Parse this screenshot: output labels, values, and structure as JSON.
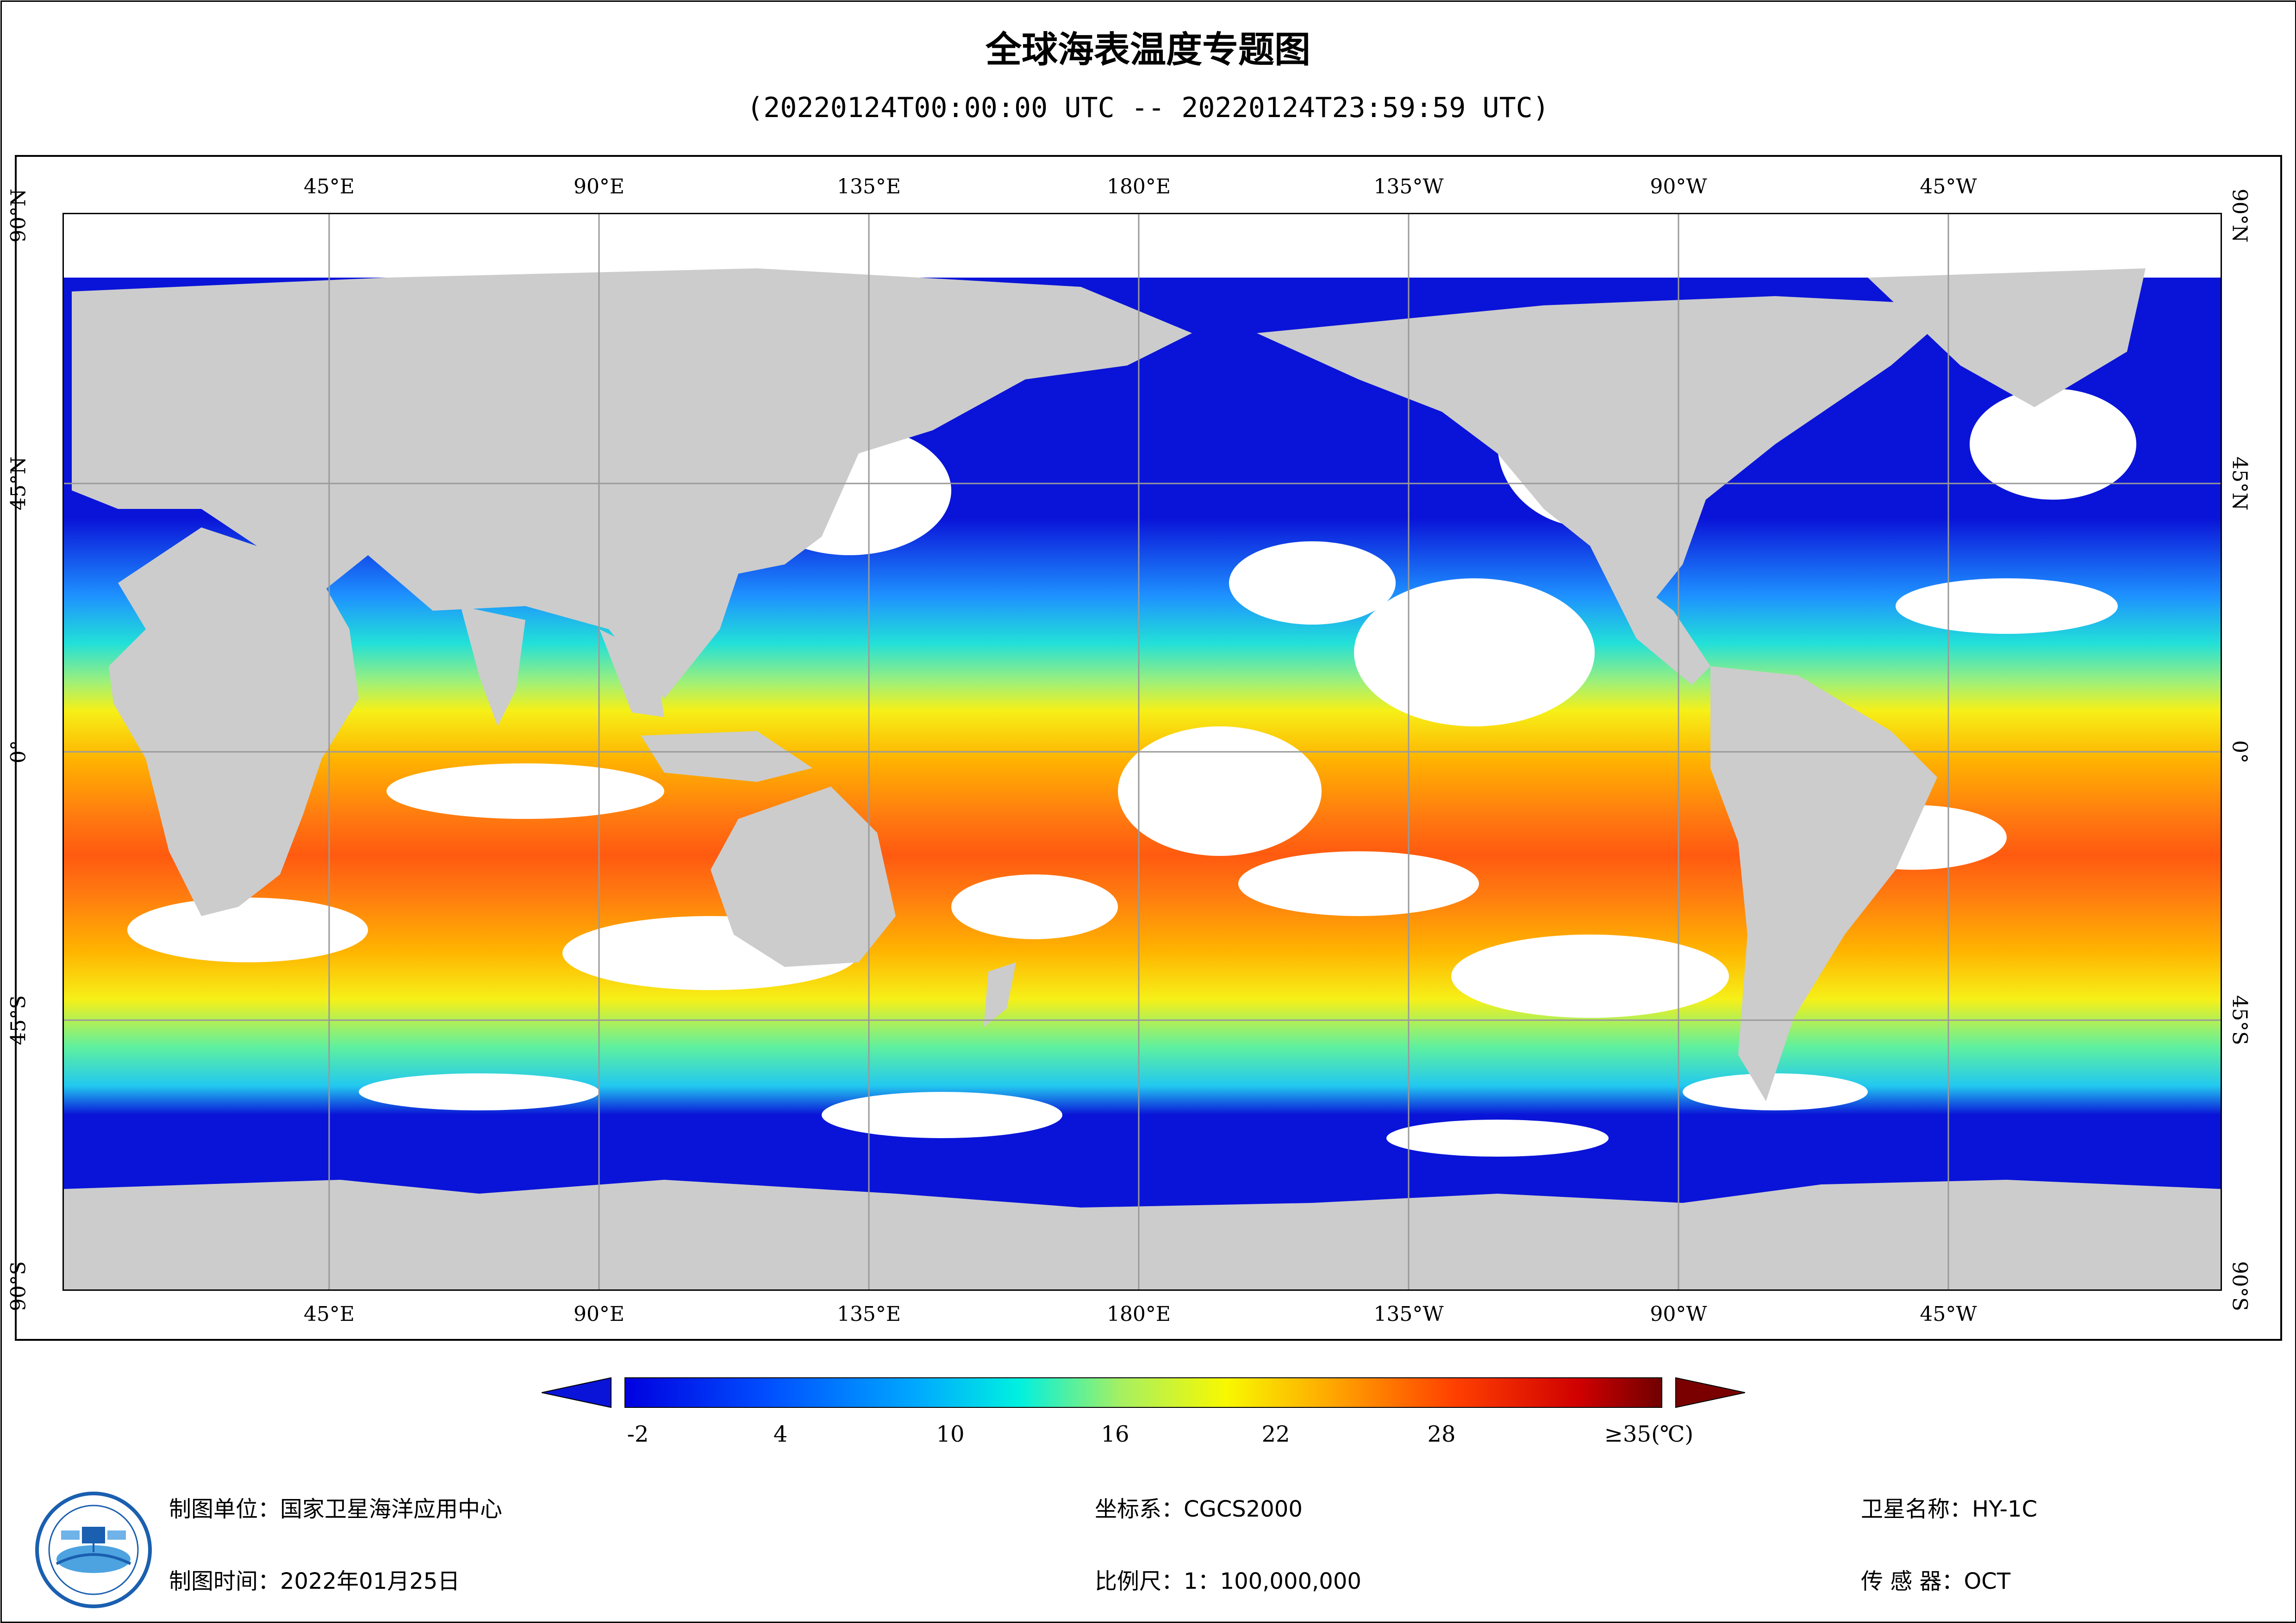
{
  "title": "全球海表温度专题图",
  "subtitle": "(20220124T00:00:00 UTC -- 20220124T23:59:59 UTC)",
  "map": {
    "top_labels": [
      "45°E",
      "90°E",
      "135°E",
      "180°E",
      "135°W",
      "90°W",
      "45°W"
    ],
    "bottom_labels": [
      "45°E",
      "90°E",
      "135°E",
      "180°E",
      "135°W",
      "90°W",
      "45°W"
    ],
    "side_labels": [
      "90°N",
      "45°N",
      "0°",
      "45°S",
      "90°S"
    ],
    "colors": {
      "land": "#cccccc",
      "gap": "#ffffff",
      "grid": "#9a9a9a"
    }
  },
  "colorbar": {
    "labels": [
      "-2",
      "4",
      "10",
      "16",
      "22",
      "28",
      "≥35(℃)"
    ],
    "colors": {
      "under": "#0a14d8",
      "over": "#7a0000"
    }
  },
  "footer": {
    "unit": "制图单位：国家卫星海洋应用中心",
    "date": "制图时间：2022年01月25日",
    "crs": "坐标系：CGCS2000",
    "scale": "比例尺：1：100,000,000",
    "satellite": "卫星名称：HY-1C",
    "sensor": "传 感 器：OCT"
  }
}
